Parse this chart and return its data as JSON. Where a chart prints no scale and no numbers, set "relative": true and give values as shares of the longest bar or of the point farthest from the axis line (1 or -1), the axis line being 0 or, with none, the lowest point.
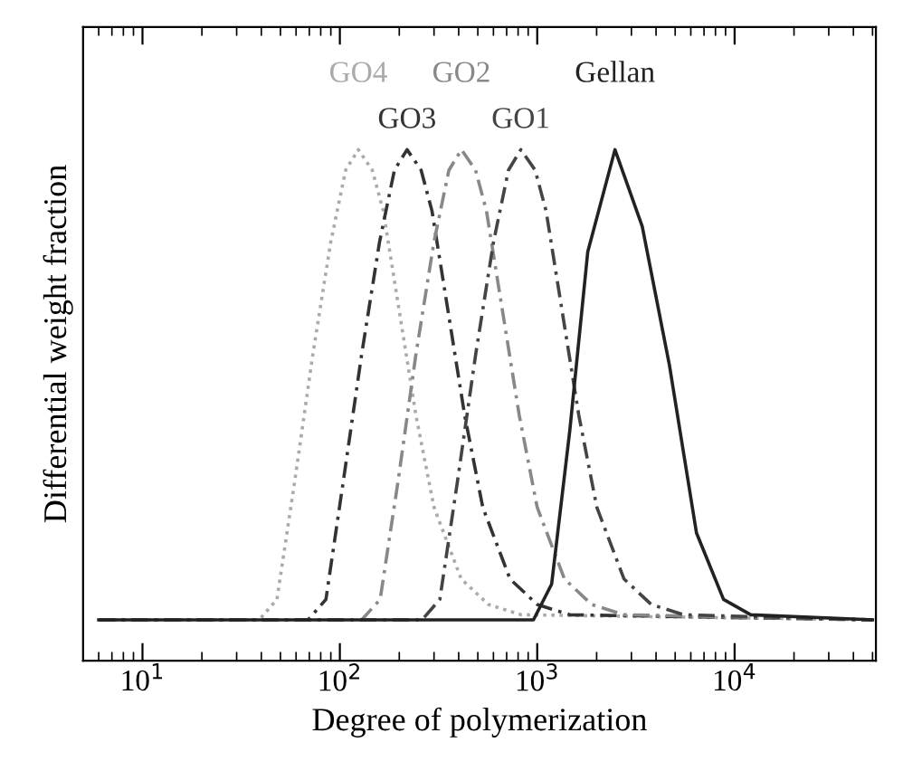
{
  "chart_data": {
    "type": "line",
    "relative": true,
    "log": "x",
    "xlabel": "Degree of polymerization",
    "ylabel": "Differential weight fraction",
    "xlim": [
      5,
      52000
    ],
    "xticks": [
      {
        "value": 10,
        "label": "10$^{1}$"
      },
      {
        "value": 100,
        "label": "10$^{2}$"
      },
      {
        "value": 1000,
        "label": "10$^{3}$"
      },
      {
        "value": 10000,
        "label": "10$^{4}$"
      }
    ],
    "tick_labels": "x",
    "grid": false,
    "legend": false,
    "marker": "none",
    "series": [
      {
        "name": "GO4",
        "color": "#aaaaaa",
        "line_style": "dotted",
        "x": [
          6,
          39,
          48,
          59,
          73,
          90,
          107,
          124,
          146,
          166,
          197,
          243,
          300,
          412,
          566,
          828,
          50000
        ],
        "values": [
          0.08,
          0.08,
          0.12,
          0.35,
          0.6,
          0.82,
          0.96,
          1,
          0.96,
          0.88,
          0.7,
          0.48,
          0.3,
          0.16,
          0.11,
          0.09,
          0.08
        ]
      },
      {
        "name": "GO3",
        "color": "#333333",
        "line_style": "dashed",
        "x": [
          6,
          69,
          85,
          104,
          129,
          159,
          189,
          219,
          258,
          293,
          348,
          429,
          530,
          728,
          1000,
          1462,
          50000
        ],
        "values": [
          0.08,
          0.08,
          0.12,
          0.35,
          0.6,
          0.82,
          0.96,
          1,
          0.96,
          0.88,
          0.7,
          0.48,
          0.3,
          0.16,
          0.11,
          0.09,
          0.08
        ]
      },
      {
        "name": "GO2",
        "color": "#888888",
        "line_style": "dashed",
        "x": [
          6,
          129,
          160,
          197,
          243,
          300,
          357,
          413,
          487,
          553,
          657,
          811,
          1000,
          1374,
          1887,
          2760,
          50000
        ],
        "values": [
          0.08,
          0.08,
          0.12,
          0.35,
          0.6,
          0.82,
          0.96,
          1,
          0.96,
          0.88,
          0.7,
          0.48,
          0.3,
          0.16,
          0.11,
          0.09,
          0.08
        ]
      },
      {
        "name": "GO1",
        "color": "#444444",
        "line_style": "dashed",
        "x": [
          6,
          261,
          321,
          394,
          488,
          601,
          715,
          826,
          976,
          1109,
          1317,
          1625,
          2005,
          2753,
          3783,
          5533,
          50000
        ],
        "values": [
          0.08,
          0.08,
          0.12,
          0.35,
          0.6,
          0.82,
          0.96,
          1,
          0.96,
          0.88,
          0.7,
          0.48,
          0.3,
          0.16,
          0.11,
          0.09,
          0.08
        ]
      },
      {
        "name": "Gellan",
        "color": "#222222",
        "line_style": "solid",
        "x": [
          6,
          957,
          1183,
          1462,
          1803,
          2477,
          3404,
          4667,
          6412,
          8790,
          12078,
          50000
        ],
        "values": [
          0.08,
          0.08,
          0.15,
          0.45,
          0.8,
          1,
          0.85,
          0.58,
          0.25,
          0.12,
          0.09,
          0.08
        ]
      }
    ]
  }
}
